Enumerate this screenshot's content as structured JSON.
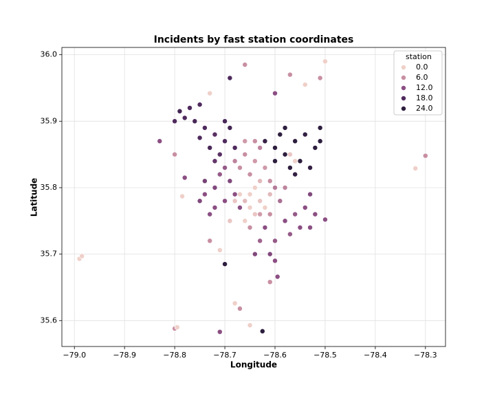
{
  "chart_data": {
    "type": "scatter",
    "title": "Incidents by fast station coordinates",
    "x_label": "Longitude",
    "y_label": "Latitude",
    "xlim": [
      -79.025,
      -78.26
    ],
    "ylim": [
      35.561,
      36.011
    ],
    "xticks": [
      {
        "value": -79.0,
        "label": "−79.0"
      },
      {
        "value": -78.9,
        "label": "−78.9"
      },
      {
        "value": -78.8,
        "label": "−78.8"
      },
      {
        "value": -78.7,
        "label": "−78.7"
      },
      {
        "value": -78.6,
        "label": "−78.6"
      },
      {
        "value": -78.5,
        "label": "−78.5"
      },
      {
        "value": -78.4,
        "label": "−78.4"
      },
      {
        "value": -78.3,
        "label": "−78.3"
      }
    ],
    "yticks": [
      35.6,
      35.7,
      35.8,
      35.9,
      {
        "value": 36,
        "label": "36.0"
      }
    ],
    "grid": true,
    "legend_title": "station",
    "legend_position": "upper right",
    "hue_legend": [
      {
        "value": 0,
        "label": "0.0",
        "color": "#efd0c9"
      },
      {
        "value": 6,
        "label": "6.0",
        "color": "#c88fa2"
      },
      {
        "value": 12,
        "label": "12.0",
        "color": "#8b4f83"
      },
      {
        "value": 18,
        "label": "18.0",
        "color": "#4f2a5d"
      },
      {
        "value": 24,
        "label": "24.0",
        "color": "#2d1e3e"
      }
    ],
    "x": [
      -78.99,
      -78.985,
      -78.83,
      -78.8,
      -78.795,
      -78.3,
      -78.32,
      -78.5,
      -78.66,
      -78.69,
      -78.57,
      -78.51,
      -78.71,
      -78.625,
      -78.68,
      -78.67,
      -78.65,
      -78.61,
      -78.595,
      -78.7,
      -78.73,
      -78.8,
      -78.785,
      -78.78,
      -78.5,
      -78.73,
      -78.71,
      -78.6,
      -78.54,
      -78.75,
      -78.8,
      -78.78,
      -78.76,
      -78.74,
      -78.72,
      -78.7,
      -78.73,
      -78.71,
      -78.69,
      -78.75,
      -78.68,
      -78.7,
      -78.72,
      -78.77,
      -78.79,
      -78.6,
      -78.58,
      -78.56,
      -78.54,
      -78.52,
      -78.57,
      -78.59,
      -78.55,
      -78.53,
      -78.51,
      -78.62,
      -78.6,
      -78.58,
      -78.51,
      -78.56,
      -78.74,
      -78.72,
      -78.7,
      -78.71,
      -78.73,
      -78.69,
      -78.68,
      -78.74,
      -78.72,
      -78.7,
      -78.67,
      -78.75,
      -78.62,
      -78.6,
      -78.61,
      -78.6,
      -78.58,
      -78.56,
      -78.54,
      -78.53,
      -78.55,
      -78.57,
      -78.52,
      -78.63,
      -78.59,
      -78.53,
      -78.64,
      -78.66,
      -78.64,
      -78.65,
      -78.63,
      -78.67,
      -78.62,
      -78.64,
      -78.68,
      -78.61,
      -78.66,
      -78.6,
      -78.58,
      -78.63,
      -78.65,
      -78.61,
      -78.65,
      -78.63,
      -78.64,
      -78.66,
      -78.62,
      -78.64,
      -78.67,
      -78.63,
      -78.65,
      -78.68,
      -78.61,
      -78.66,
      -78.69,
      -78.56,
      -78.57
    ],
    "y": [
      35.693,
      35.697,
      35.87,
      35.588,
      35.59,
      35.848,
      35.829,
      35.99,
      35.985,
      35.965,
      35.97,
      35.965,
      35.583,
      35.584,
      35.626,
      35.618,
      35.593,
      35.658,
      35.666,
      35.685,
      35.942,
      35.85,
      35.787,
      35.815,
      35.752,
      35.72,
      35.706,
      35.942,
      35.955,
      35.925,
      35.9,
      35.905,
      35.9,
      35.89,
      35.88,
      35.87,
      35.86,
      35.85,
      35.89,
      35.875,
      35.86,
      35.9,
      35.84,
      35.92,
      35.915,
      35.86,
      35.85,
      35.87,
      35.88,
      35.86,
      35.83,
      35.88,
      35.84,
      35.83,
      35.89,
      35.87,
      35.84,
      35.89,
      35.87,
      35.82,
      35.79,
      35.8,
      35.78,
      35.82,
      35.76,
      35.81,
      35.79,
      35.81,
      35.77,
      35.83,
      35.77,
      35.78,
      35.74,
      35.72,
      35.7,
      35.69,
      35.75,
      35.76,
      35.77,
      35.79,
      35.74,
      35.73,
      35.76,
      35.72,
      35.78,
      35.74,
      35.7,
      35.85,
      35.84,
      35.82,
      35.86,
      35.83,
      35.83,
      35.87,
      35.84,
      35.81,
      35.87,
      35.8,
      35.8,
      35.76,
      35.74,
      35.76,
      35.79,
      35.78,
      35.8,
      35.78,
      35.77,
      35.76,
      35.79,
      35.81,
      35.77,
      35.78,
      35.79,
      35.75,
      35.75,
      35.84,
      35.85
    ],
    "hue": [
      0,
      0,
      12,
      6,
      0,
      6,
      0,
      0,
      6,
      18,
      6,
      6,
      12,
      24,
      0,
      6,
      0,
      6,
      12,
      24,
      0,
      6,
      0,
      12,
      12,
      6,
      0,
      12,
      0,
      18,
      18,
      18,
      19,
      18,
      17,
      18,
      19,
      17,
      20,
      18,
      18,
      19,
      16,
      18,
      20,
      24,
      25,
      24,
      23,
      24,
      25,
      24,
      24,
      23,
      25,
      22,
      24,
      25,
      24,
      23,
      12,
      13,
      12,
      11,
      12,
      13,
      12,
      14,
      12,
      11,
      12,
      13,
      12,
      11,
      13,
      12,
      12,
      11,
      12,
      13,
      12,
      11,
      12,
      10,
      9,
      12,
      13,
      6,
      5,
      6,
      7,
      6,
      5,
      6,
      7,
      6,
      5,
      8,
      7,
      5,
      6,
      6,
      0,
      1,
      0,
      2,
      0,
      1,
      0,
      2,
      0,
      1,
      2,
      0,
      1,
      0,
      1
    ]
  }
}
